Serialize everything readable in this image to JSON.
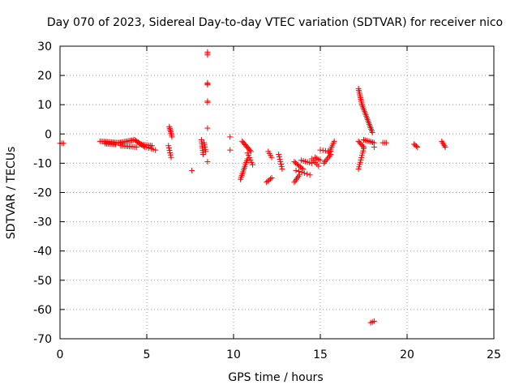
{
  "chart_data": {
    "type": "scatter",
    "title": "Day 070 of 2023, Sidereal Day-to-day VTEC variation (SDTVAR) for receiver nico",
    "xlabel": "GPS time / hours",
    "ylabel": "SDTVAR / TECUs",
    "xlim": [
      0,
      25
    ],
    "ylim": [
      -70,
      30
    ],
    "x_ticks": [
      0,
      5,
      10,
      15,
      20,
      25
    ],
    "y_ticks": [
      -70,
      -60,
      -50,
      -40,
      -30,
      -20,
      -10,
      0,
      10,
      20,
      30
    ],
    "grid": true,
    "marker": "+",
    "marker_color": "#ff0000",
    "series": [
      {
        "name": "SDTVAR",
        "segments": [
          {
            "x0": 0.0,
            "x1": 0.2,
            "y0": -3.2,
            "y1": -3.2,
            "n": 3
          },
          {
            "x0": 2.3,
            "x1": 3.4,
            "y0": -2.5,
            "y1": -3.0,
            "n": 14
          },
          {
            "x0": 2.6,
            "x1": 3.2,
            "y0": -3.3,
            "y1": -3.5,
            "n": 8
          },
          {
            "x0": 3.4,
            "x1": 4.3,
            "y0": -3.0,
            "y1": -2.0,
            "n": 12
          },
          {
            "x0": 3.5,
            "x1": 4.4,
            "y0": -4.0,
            "y1": -4.5,
            "n": 10
          },
          {
            "x0": 4.3,
            "x1": 4.9,
            "y0": -2.0,
            "y1": -4.5,
            "n": 10
          },
          {
            "x0": 4.6,
            "x1": 5.3,
            "y0": -3.5,
            "y1": -4.0,
            "n": 8
          },
          {
            "x0": 5.0,
            "x1": 5.5,
            "y0": -4.5,
            "y1": -5.5,
            "n": 5
          },
          {
            "x0": 6.3,
            "x1": 6.45,
            "y0": 2.5,
            "y1": -1.0,
            "n": 7
          },
          {
            "x0": 6.25,
            "x1": 6.4,
            "y0": -4.0,
            "y1": -8.0,
            "n": 6
          },
          {
            "x0": 7.6,
            "x1": 7.6,
            "y0": -12.5,
            "y1": -12.5,
            "n": 1
          },
          {
            "x0": 8.15,
            "x1": 8.25,
            "y0": -2.0,
            "y1": -7.0,
            "n": 8
          },
          {
            "x0": 8.3,
            "x1": 8.4,
            "y0": -3.0,
            "y1": -6.0,
            "n": 5
          },
          {
            "x0": 8.5,
            "x1": 8.5,
            "y0": 28.0,
            "y1": 27.0,
            "n": 3
          },
          {
            "x0": 8.5,
            "x1": 8.5,
            "y0": 17.5,
            "y1": 16.8,
            "n": 3
          },
          {
            "x0": 8.5,
            "x1": 8.5,
            "y0": 11.2,
            "y1": 10.8,
            "n": 2
          },
          {
            "x0": 8.5,
            "x1": 8.5,
            "y0": 2.0,
            "y1": 2.0,
            "n": 1
          },
          {
            "x0": 8.5,
            "x1": 8.5,
            "y0": -9.5,
            "y1": -9.5,
            "n": 1
          },
          {
            "x0": 9.8,
            "x1": 9.8,
            "y0": -1.0,
            "y1": -1.0,
            "n": 1
          },
          {
            "x0": 9.8,
            "x1": 9.8,
            "y0": -5.5,
            "y1": -5.5,
            "n": 1
          },
          {
            "x0": 10.4,
            "x1": 10.8,
            "y0": -15.5,
            "y1": -8.5,
            "n": 12
          },
          {
            "x0": 10.5,
            "x1": 11.0,
            "y0": -2.5,
            "y1": -6.0,
            "n": 10
          },
          {
            "x0": 10.8,
            "x1": 11.1,
            "y0": -6.5,
            "y1": -10.5,
            "n": 6
          },
          {
            "x0": 12.0,
            "x1": 12.2,
            "y0": -6.0,
            "y1": -8.0,
            "n": 4
          },
          {
            "x0": 11.9,
            "x1": 12.2,
            "y0": -16.5,
            "y1": -15.0,
            "n": 5
          },
          {
            "x0": 12.6,
            "x1": 12.8,
            "y0": -7.0,
            "y1": -12.0,
            "n": 7
          },
          {
            "x0": 13.5,
            "x1": 13.8,
            "y0": -16.5,
            "y1": -14.0,
            "n": 6
          },
          {
            "x0": 13.5,
            "x1": 14.0,
            "y0": -9.5,
            "y1": -12.0,
            "n": 8
          },
          {
            "x0": 13.6,
            "x1": 14.4,
            "y0": -12.5,
            "y1": -14.0,
            "n": 6
          },
          {
            "x0": 13.9,
            "x1": 14.5,
            "y0": -9.0,
            "y1": -10.0,
            "n": 6
          },
          {
            "x0": 14.5,
            "x1": 14.9,
            "y0": -8.5,
            "y1": -11.0,
            "n": 5
          },
          {
            "x0": 14.7,
            "x1": 15.0,
            "y0": -8.0,
            "y1": -9.0,
            "n": 4
          },
          {
            "x0": 15.2,
            "x1": 15.6,
            "y0": -10.0,
            "y1": -7.0,
            "n": 7
          },
          {
            "x0": 15.5,
            "x1": 15.8,
            "y0": -6.5,
            "y1": -2.5,
            "n": 7
          },
          {
            "x0": 15.0,
            "x1": 15.6,
            "y0": -5.5,
            "y1": -6.0,
            "n": 5
          },
          {
            "x0": 17.2,
            "x1": 17.4,
            "y0": 15.5,
            "y1": 10.0,
            "n": 10
          },
          {
            "x0": 17.4,
            "x1": 18.0,
            "y0": 10.0,
            "y1": 0.5,
            "n": 18
          },
          {
            "x0": 17.2,
            "x1": 17.5,
            "y0": -12.0,
            "y1": -5.0,
            "n": 10
          },
          {
            "x0": 17.2,
            "x1": 17.5,
            "y0": -2.5,
            "y1": -4.5,
            "n": 6
          },
          {
            "x0": 17.5,
            "x1": 18.1,
            "y0": -2.0,
            "y1": -3.0,
            "n": 8
          },
          {
            "x0": 18.1,
            "x1": 18.1,
            "y0": -4.5,
            "y1": -4.5,
            "n": 1
          },
          {
            "x0": 17.9,
            "x1": 18.1,
            "y0": -64.5,
            "y1": -64.0,
            "n": 3
          },
          {
            "x0": 18.6,
            "x1": 18.8,
            "y0": -3.0,
            "y1": -3.0,
            "n": 3
          },
          {
            "x0": 20.4,
            "x1": 20.6,
            "y0": -3.5,
            "y1": -4.5,
            "n": 4
          },
          {
            "x0": 22.0,
            "x1": 22.2,
            "y0": -2.5,
            "y1": -4.5,
            "n": 5
          }
        ]
      }
    ]
  }
}
